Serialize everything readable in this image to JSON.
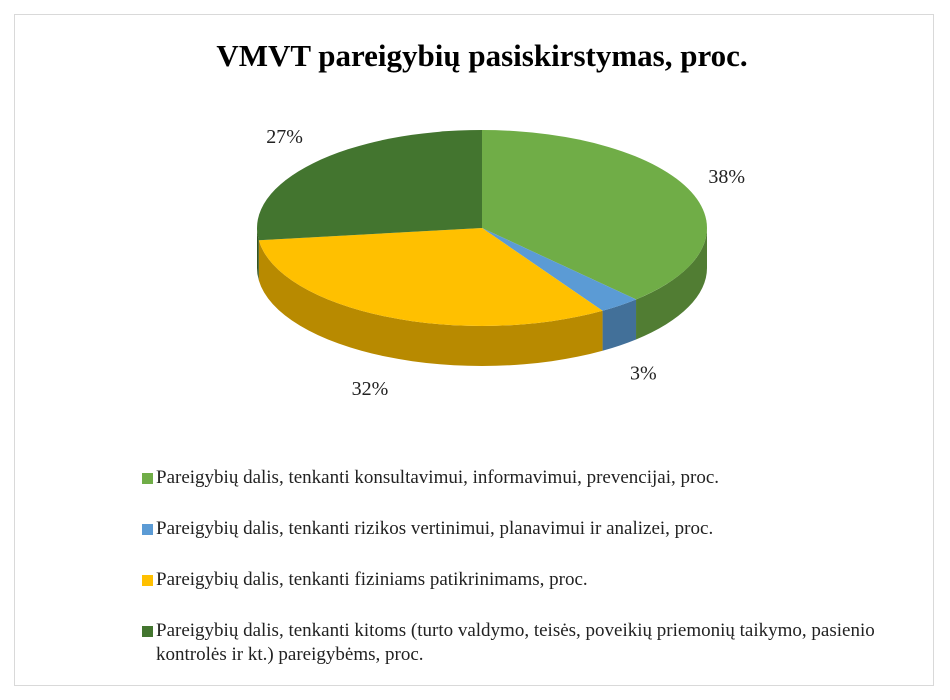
{
  "chart_data": {
    "type": "pie3d",
    "title": "VMVT pareigybių pasiskirstymas, proc.",
    "categories": [
      "Pareigybių dalis, tenkanti konsultavimui, informavimui, prevencijai, proc.",
      "Pareigybių dalis, tenkanti rizikos vertinimui, planavimui ir analizei, proc.",
      "Pareigybių dalis, tenkanti fiziniams patikrinimams, proc.",
      "Pareigybių dalis, tenkanti kitoms (turto valdymo, teisės, poveikių priemonių taikymo, pasienio kontrolės ir kt.) pareigybėms, proc."
    ],
    "values": [
      38,
      3,
      32,
      27
    ],
    "value_labels": [
      "38%",
      "3%",
      "32%",
      "27%"
    ],
    "colors": [
      "#70ad47",
      "#5b9bd5",
      "#ffc000",
      "#43752f"
    ],
    "legend": "bottom"
  }
}
